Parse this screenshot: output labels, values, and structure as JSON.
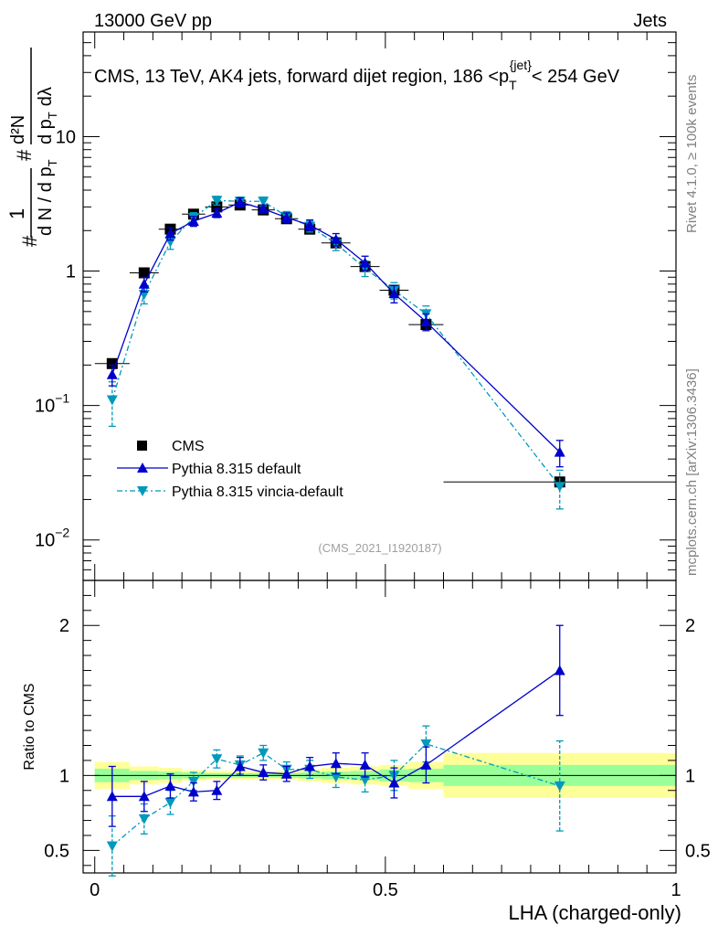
{
  "header": {
    "left": "13000 GeV pp",
    "right": "Jets"
  },
  "side_labels": {
    "rivet": "Rivet 4.1.0, ≥ 100k events",
    "mcplots": "mcplots.cern.ch [arXiv:1306.3436]"
  },
  "colors": {
    "cms": "#000000",
    "pythia_default": "#0000cc",
    "vincia": "#0099bb",
    "band_inner": "#99ff99",
    "band_outer": "#ffff99"
  },
  "chart_data": [
    {
      "type": "line",
      "panel": "main",
      "title": "CMS, 13 TeV, AK4 jets, forward dijet region, 186 < p_T^{jet} < 254 GeV",
      "title_parts": {
        "main": "CMS, 13 TeV, AK4 jets, forward dijet region, 186 <p",
        "sup": "{jet}",
        "sub": "T",
        "tail": "< 254 GeV"
      },
      "ylabel": "1/(dN/dp_T) d^2N/(dp_T dλ)",
      "ylabel_parts": {
        "one": "1",
        "den": "d N / d p",
        "num": "d²N",
        "den2": "d p",
        "t": "T",
        "lam": "dλ",
        "hash": "#"
      },
      "yscale": "log",
      "ylim": [
        0.005,
        60
      ],
      "xlim": [
        -0.02,
        1.0
      ],
      "y_ticks": [
        {
          "v": 0.01,
          "label": "10",
          "exp": "−2"
        },
        {
          "v": 0.1,
          "label": "10",
          "exp": "−1"
        },
        {
          "v": 1,
          "label": "1",
          "exp": ""
        },
        {
          "v": 10,
          "label": "10",
          "exp": ""
        }
      ],
      "watermark": "(CMS_2021_I1920187)",
      "legend": [
        {
          "name": "CMS",
          "key": "cms"
        },
        {
          "name": "Pythia 8.315 default",
          "key": "pythia_default"
        },
        {
          "name": "Pythia 8.315 vincia-default",
          "key": "vincia"
        }
      ],
      "series": [
        {
          "name": "CMS",
          "x": [
            0.03,
            0.085,
            0.13,
            0.17,
            0.21,
            0.25,
            0.29,
            0.33,
            0.37,
            0.415,
            0.465,
            0.515,
            0.57,
            0.8
          ],
          "xerr": [
            0.03,
            0.025,
            0.02,
            0.02,
            0.02,
            0.02,
            0.02,
            0.02,
            0.02,
            0.025,
            0.025,
            0.025,
            0.03,
            0.2
          ],
          "values": [
            0.205,
            0.97,
            2.05,
            2.65,
            3.0,
            3.1,
            2.85,
            2.45,
            2.05,
            1.62,
            1.08,
            0.72,
            0.4,
            0.027
          ]
        },
        {
          "name": "Pythia 8.315 default",
          "x": [
            0.03,
            0.085,
            0.13,
            0.17,
            0.21,
            0.25,
            0.29,
            0.33,
            0.37,
            0.415,
            0.465,
            0.515,
            0.57,
            0.8
          ],
          "values": [
            0.17,
            0.8,
            1.9,
            2.35,
            2.7,
            3.25,
            2.9,
            2.5,
            2.2,
            1.72,
            1.15,
            0.68,
            0.42,
            0.045
          ],
          "yerr": [
            0.03,
            0.1,
            0.2,
            0.2,
            0.2,
            0.25,
            0.2,
            0.2,
            0.2,
            0.18,
            0.14,
            0.1,
            0.06,
            0.01
          ]
        },
        {
          "name": "Pythia 8.315 vincia-default",
          "x": [
            0.03,
            0.085,
            0.13,
            0.17,
            0.21,
            0.25,
            0.29,
            0.33,
            0.37,
            0.415,
            0.465,
            0.515,
            0.57,
            0.8
          ],
          "values": [
            0.11,
            0.67,
            1.65,
            2.5,
            3.35,
            3.3,
            3.3,
            2.55,
            2.15,
            1.6,
            1.05,
            0.72,
            0.48,
            0.025
          ],
          "yerr": [
            0.04,
            0.1,
            0.2,
            0.22,
            0.25,
            0.25,
            0.25,
            0.22,
            0.2,
            0.18,
            0.14,
            0.1,
            0.07,
            0.008
          ]
        }
      ]
    },
    {
      "type": "line",
      "panel": "ratio",
      "xlabel": "LHA (charged-only)",
      "ylabel": "Ratio to CMS",
      "ylim": [
        0.35,
        2.3
      ],
      "xlim": [
        -0.02,
        1.0
      ],
      "y_ticks": [
        {
          "v": 0.5,
          "label": "0.5"
        },
        {
          "v": 1,
          "label": "1"
        },
        {
          "v": 2,
          "label": "2"
        }
      ],
      "x_ticks": [
        {
          "v": 0,
          "label": "0"
        },
        {
          "v": 0.5,
          "label": "0.5"
        },
        {
          "v": 1,
          "label": "1"
        }
      ],
      "bands": [
        {
          "x0": 0.0,
          "x1": 0.06,
          "inner": [
            0.955,
            1.045
          ],
          "outer": [
            0.91,
            1.09
          ]
        },
        {
          "x0": 0.06,
          "x1": 0.11,
          "inner": [
            0.97,
            1.03
          ],
          "outer": [
            0.94,
            1.06
          ]
        },
        {
          "x0": 0.11,
          "x1": 0.15,
          "inner": [
            0.975,
            1.025
          ],
          "outer": [
            0.95,
            1.05
          ]
        },
        {
          "x0": 0.15,
          "x1": 0.19,
          "inner": [
            0.98,
            1.02
          ],
          "outer": [
            0.965,
            1.035
          ]
        },
        {
          "x0": 0.19,
          "x1": 0.23,
          "inner": [
            0.985,
            1.015
          ],
          "outer": [
            0.97,
            1.03
          ]
        },
        {
          "x0": 0.23,
          "x1": 0.27,
          "inner": [
            0.985,
            1.015
          ],
          "outer": [
            0.97,
            1.03
          ]
        },
        {
          "x0": 0.27,
          "x1": 0.31,
          "inner": [
            0.985,
            1.015
          ],
          "outer": [
            0.97,
            1.03
          ]
        },
        {
          "x0": 0.31,
          "x1": 0.35,
          "inner": [
            0.985,
            1.015
          ],
          "outer": [
            0.97,
            1.03
          ]
        },
        {
          "x0": 0.35,
          "x1": 0.39,
          "inner": [
            0.98,
            1.02
          ],
          "outer": [
            0.96,
            1.04
          ]
        },
        {
          "x0": 0.39,
          "x1": 0.44,
          "inner": [
            0.975,
            1.025
          ],
          "outer": [
            0.95,
            1.05
          ]
        },
        {
          "x0": 0.44,
          "x1": 0.49,
          "inner": [
            0.97,
            1.03
          ],
          "outer": [
            0.94,
            1.06
          ]
        },
        {
          "x0": 0.49,
          "x1": 0.54,
          "inner": [
            0.96,
            1.04
          ],
          "outer": [
            0.93,
            1.07
          ]
        },
        {
          "x0": 0.54,
          "x1": 0.6,
          "inner": [
            0.955,
            1.045
          ],
          "outer": [
            0.91,
            1.09
          ]
        },
        {
          "x0": 0.6,
          "x1": 1.0,
          "inner": [
            0.93,
            1.07
          ],
          "outer": [
            0.85,
            1.15
          ]
        }
      ],
      "series": [
        {
          "name": "Pythia 8.315 default",
          "x": [
            0.03,
            0.085,
            0.13,
            0.17,
            0.21,
            0.25,
            0.29,
            0.33,
            0.37,
            0.415,
            0.465,
            0.515,
            0.57,
            0.8
          ],
          "values": [
            0.86,
            0.86,
            0.93,
            0.89,
            0.9,
            1.06,
            1.02,
            1.01,
            1.06,
            1.08,
            1.07,
            0.95,
            1.07,
            1.7
          ],
          "yerr": [
            0.2,
            0.1,
            0.08,
            0.06,
            0.06,
            0.06,
            0.05,
            0.05,
            0.06,
            0.07,
            0.08,
            0.1,
            0.12,
            0.3
          ]
        },
        {
          "name": "Pythia 8.315 vincia-default",
          "x": [
            0.03,
            0.085,
            0.13,
            0.17,
            0.21,
            0.25,
            0.29,
            0.33,
            0.37,
            0.415,
            0.465,
            0.515,
            0.57,
            0.8
          ],
          "values": [
            0.53,
            0.71,
            0.82,
            0.96,
            1.11,
            1.07,
            1.15,
            1.04,
            1.04,
            0.99,
            0.97,
            1.0,
            1.21,
            0.93
          ],
          "yerr": [
            0.2,
            0.1,
            0.08,
            0.06,
            0.06,
            0.06,
            0.05,
            0.05,
            0.06,
            0.07,
            0.08,
            0.1,
            0.12,
            0.3
          ]
        }
      ]
    }
  ]
}
